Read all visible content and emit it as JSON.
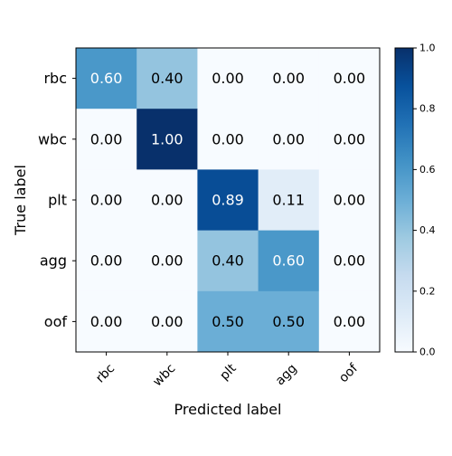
{
  "chart_data": {
    "type": "heatmap",
    "title": "",
    "xlabel": "Predicted label",
    "ylabel": "True label",
    "x_categories": [
      "rbc",
      "wbc",
      "plt",
      "agg",
      "oof"
    ],
    "y_categories": [
      "rbc",
      "wbc",
      "plt",
      "agg",
      "oof"
    ],
    "values": [
      [
        0.6,
        0.4,
        0.0,
        0.0,
        0.0
      ],
      [
        0.0,
        1.0,
        0.0,
        0.0,
        0.0
      ],
      [
        0.0,
        0.0,
        0.89,
        0.11,
        0.0
      ],
      [
        0.0,
        0.0,
        0.4,
        0.6,
        0.0
      ],
      [
        0.0,
        0.0,
        0.5,
        0.5,
        0.0
      ]
    ],
    "value_labels": [
      [
        "0.60",
        "0.40",
        "0.00",
        "0.00",
        "0.00"
      ],
      [
        "0.00",
        "1.00",
        "0.00",
        "0.00",
        "0.00"
      ],
      [
        "0.00",
        "0.00",
        "0.89",
        "0.11",
        "0.00"
      ],
      [
        "0.00",
        "0.00",
        "0.40",
        "0.60",
        "0.00"
      ],
      [
        "0.00",
        "0.00",
        "0.50",
        "0.50",
        "0.00"
      ]
    ],
    "colormap": "Blues",
    "color_range": [
      0.0,
      1.0
    ],
    "colorbar_ticks": [
      "0.0",
      "0.2",
      "0.4",
      "0.6",
      "0.8",
      "1.0"
    ],
    "x_tick_rotation": "45 degrees",
    "grid": false,
    "colors": {
      "low": "#f7fbff",
      "high": "#08306b",
      "text_light": "#ffffff",
      "text_dark": "#000000"
    }
  }
}
